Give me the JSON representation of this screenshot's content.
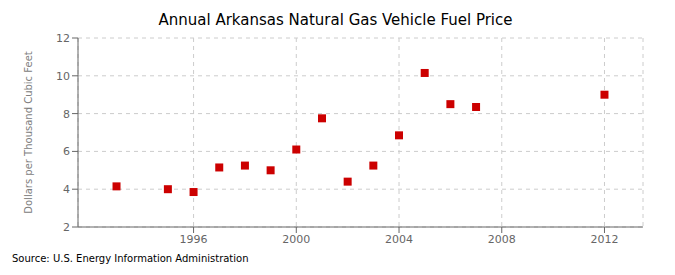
{
  "chart_data": {
    "type": "scatter",
    "title": "Annual Arkansas Natural Gas Vehicle Fuel Price",
    "y_label": "Dollars per Thousand Cubic Feet",
    "annotations": [
      "Source: U.S. Energy Information Administration"
    ],
    "x": [
      1993,
      1995,
      1996,
      1997,
      1998,
      1999,
      2000,
      2001,
      2002,
      2003,
      2004,
      2005,
      2006,
      2007,
      2012
    ],
    "values": [
      4.15,
      4.0,
      3.85,
      5.15,
      5.25,
      5.0,
      6.1,
      7.75,
      4.4,
      5.25,
      6.85,
      10.15,
      8.5,
      8.35,
      9.0
    ],
    "color": "#cc0000",
    "marker": "square",
    "xlim": [
      1991.5,
      2013.5
    ],
    "ylim": [
      2,
      12
    ],
    "xticks": [
      1996,
      2000,
      2004,
      2008,
      2012
    ],
    "yticks": [
      2,
      4,
      6,
      8,
      10,
      12
    ],
    "grid": true
  }
}
